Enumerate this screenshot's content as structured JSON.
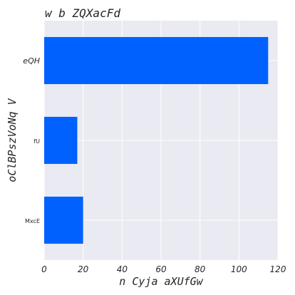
{
  "chart_data": {
    "type": "bar",
    "orientation": "horizontal",
    "title": "w b ZQXacFd",
    "xlabel": "n Cyja aXUfGw",
    "ylabel": "oClBPszVoNq V",
    "categories": [
      "eQH",
      "fU",
      "MxcE"
    ],
    "values": [
      115,
      17,
      20
    ],
    "xlim": [
      0,
      120
    ],
    "xticks": [
      0,
      20,
      40,
      60,
      80,
      100,
      120
    ],
    "grid": true,
    "colors": {
      "bar": "#0061ff",
      "plot_background": "#e9eaf2",
      "grid": "#ffffff"
    }
  }
}
